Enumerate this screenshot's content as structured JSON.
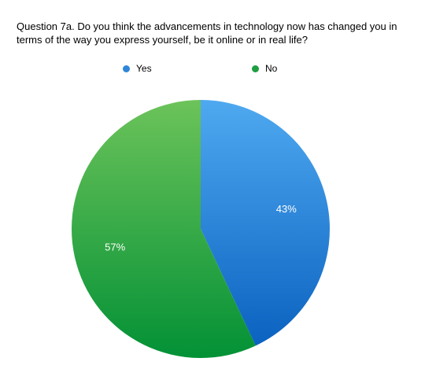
{
  "chart_data": {
    "type": "pie",
    "title": "Question 7a. Do you think the advancements in technology now has changed you in terms of the way you express yourself, be it online or in real life?",
    "categories": [
      "Yes",
      "No"
    ],
    "values": [
      43,
      57
    ],
    "labels": [
      "43%",
      "57%"
    ],
    "colors": [
      "#2f86d8",
      "#1f9e42"
    ],
    "legend_position": "top"
  }
}
